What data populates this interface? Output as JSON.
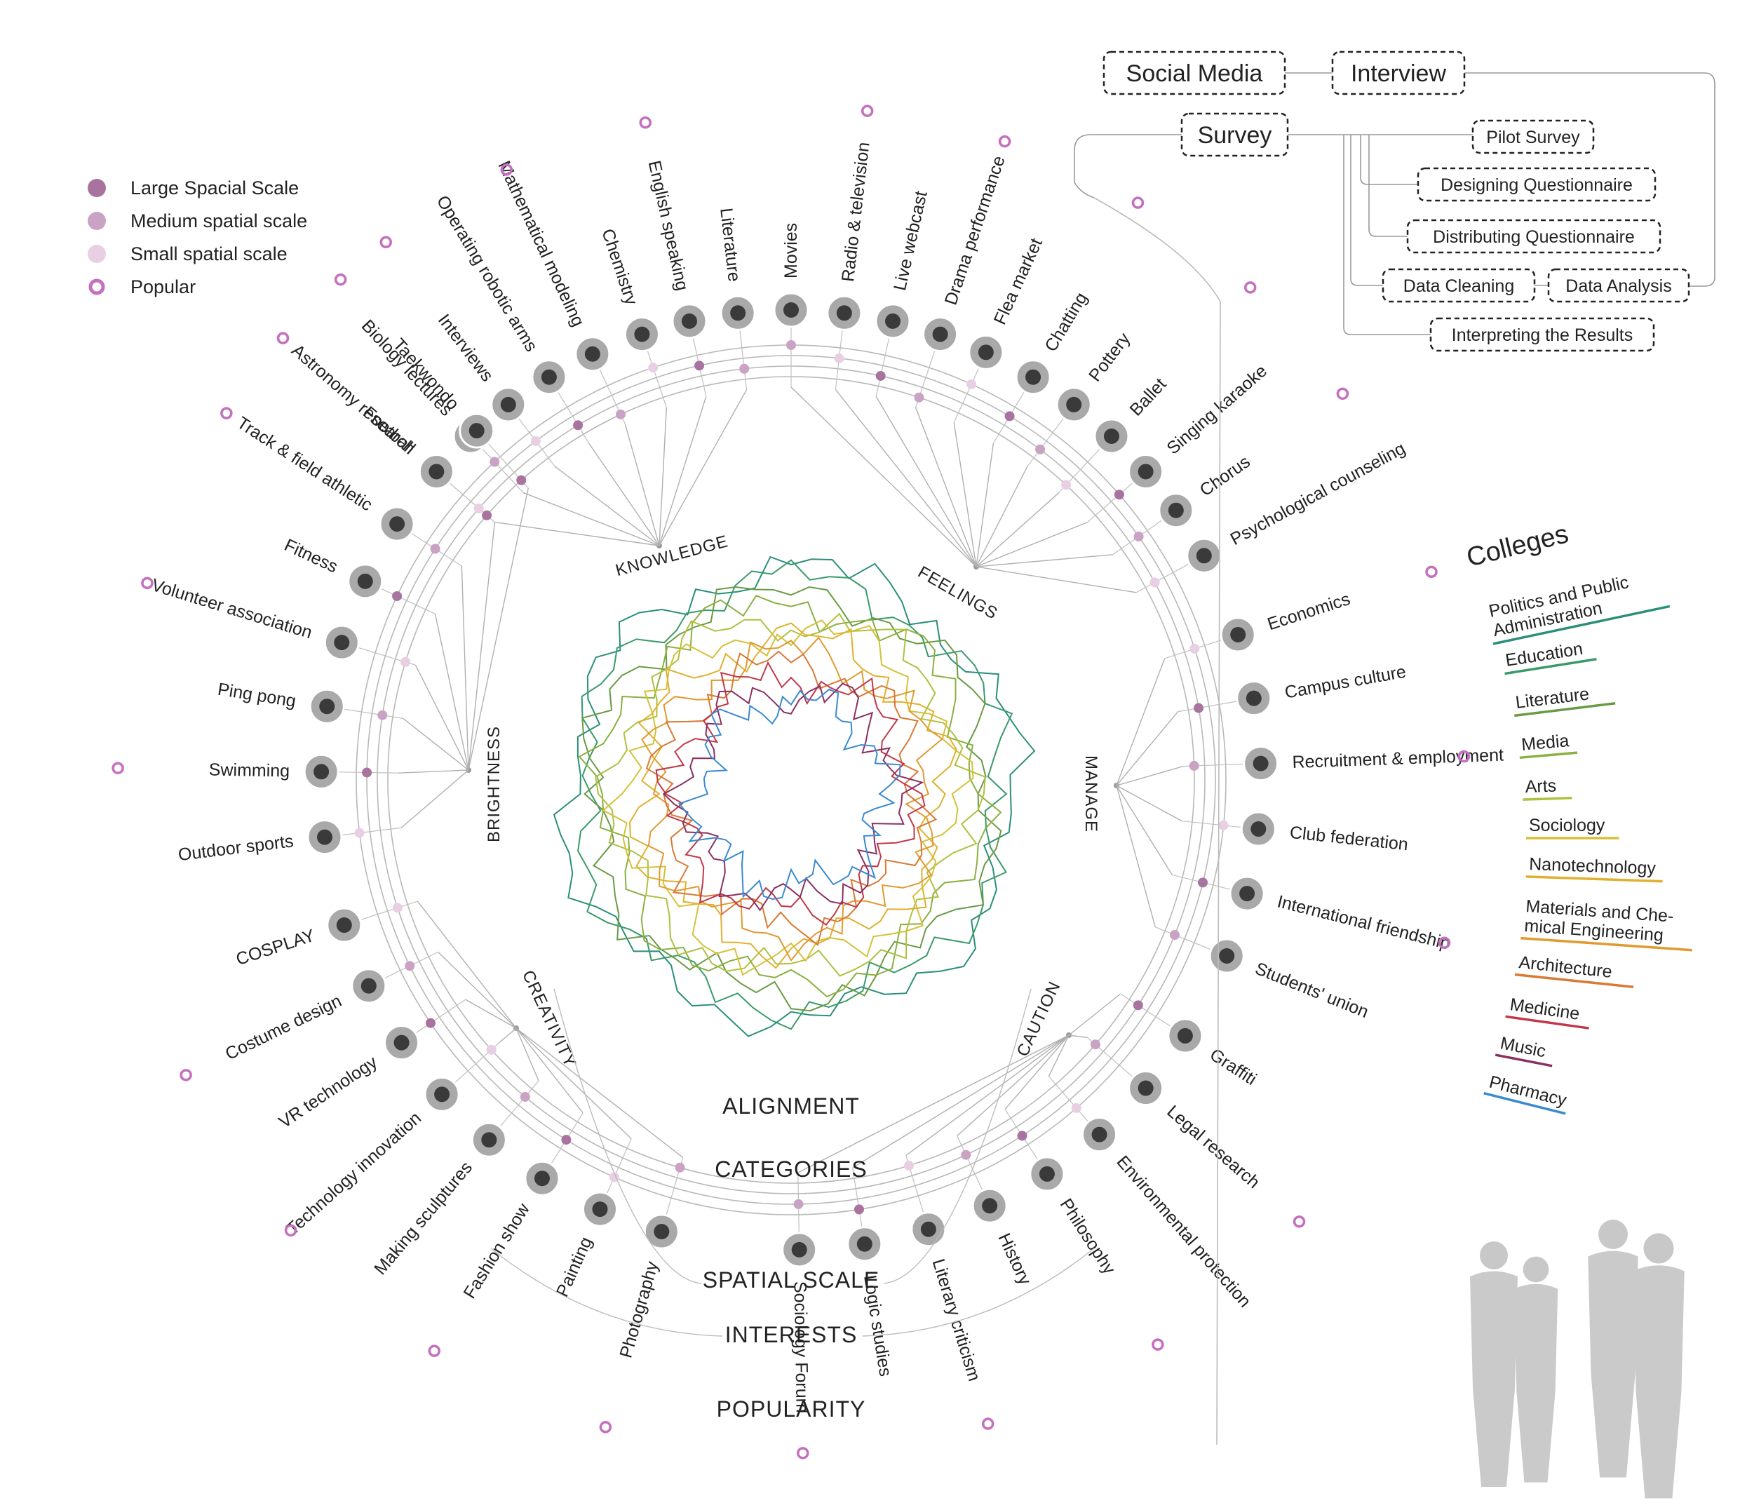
{
  "legend": {
    "items": [
      {
        "label": "Large Spacial Scale",
        "kind": "large",
        "color": "#a8739f"
      },
      {
        "label": "Medium spatial scale",
        "kind": "medium",
        "color": "#c9a2c4"
      },
      {
        "label": "Small spatial scale",
        "kind": "small",
        "color": "#e8cfe4"
      },
      {
        "label": "Popular",
        "kind": "popular",
        "color": "#c56fbf"
      }
    ]
  },
  "center": {
    "labels": [
      "ALIGNMENT",
      "CATEGORIES",
      "SPATIAL SCALE",
      "INTERESTS",
      "POPULARITY"
    ]
  },
  "categories": [
    {
      "name": "KNOWLEDGE",
      "items": [
        "Astronomy research",
        "Biology lectures",
        "Interviews",
        "Operating robotic arms",
        "Mathematical modeling",
        "Chemistry",
        "English speaking",
        "Literature"
      ]
    },
    {
      "name": "FEELINGS",
      "items": [
        "Movies",
        "Radio & television",
        "Live webcast",
        "Drama performance",
        "Flea market",
        "Chatting",
        "Pottery",
        "Ballet",
        "Singing karaoke",
        "Chorus",
        "Psychological counseling"
      ]
    },
    {
      "name": "MANAGE",
      "items": [
        "Economics",
        "Campus culture",
        "Recruitment & employment",
        "Club federation",
        "International friendship",
        "Students' union"
      ]
    },
    {
      "name": "CAUTION",
      "items": [
        "Graffiti",
        "Legal research",
        "Environmental protection",
        "Philosophy",
        "History",
        "Literary criticism",
        "Logic studies",
        "Sociology Forum"
      ]
    },
    {
      "name": "CREATIVITY",
      "items": [
        "Photography",
        "Painting",
        "Fashion show",
        "Making sculptures",
        "Technology innovation",
        "VR technology",
        "Costume design",
        "COSPLAY"
      ]
    },
    {
      "name": "BRIGHTNESS",
      "items": [
        "Outdoor sports",
        "Swimming",
        "Ping pong",
        "Volunteer association",
        "Fitness",
        "Track & field athletic",
        "Football",
        "Taekwondo"
      ]
    }
  ],
  "methods": {
    "social_media": "Social Media",
    "interview": "Interview",
    "survey": "Survey",
    "steps": [
      "Pilot Survey",
      "Designing Questionnaire",
      "Distributing Questionnaire",
      "Data Cleaning",
      "Data Analysis",
      "Interpreting the Results"
    ]
  },
  "colleges": {
    "title": "Colleges",
    "items": [
      {
        "name": "Politics and Public Administration",
        "color": "#2a8f7a"
      },
      {
        "name": "Education",
        "color": "#3a9a6a"
      },
      {
        "name": "Literature",
        "color": "#6a9a45"
      },
      {
        "name": "Media",
        "color": "#8ab040"
      },
      {
        "name": "Arts",
        "color": "#b0c040"
      },
      {
        "name": "Sociology",
        "color": "#d4c13a"
      },
      {
        "name": "Nanotechnology",
        "color": "#e0b030"
      },
      {
        "name": "Materials and Chemical Engineering",
        "color": "#e09a30"
      },
      {
        "name": "Architecture",
        "color": "#d87a35"
      },
      {
        "name": "Medicine",
        "color": "#c0384a"
      },
      {
        "name": "Music",
        "color": "#8a3060"
      },
      {
        "name": "Pharmacy",
        "color": "#3a8ad0"
      }
    ]
  }
}
